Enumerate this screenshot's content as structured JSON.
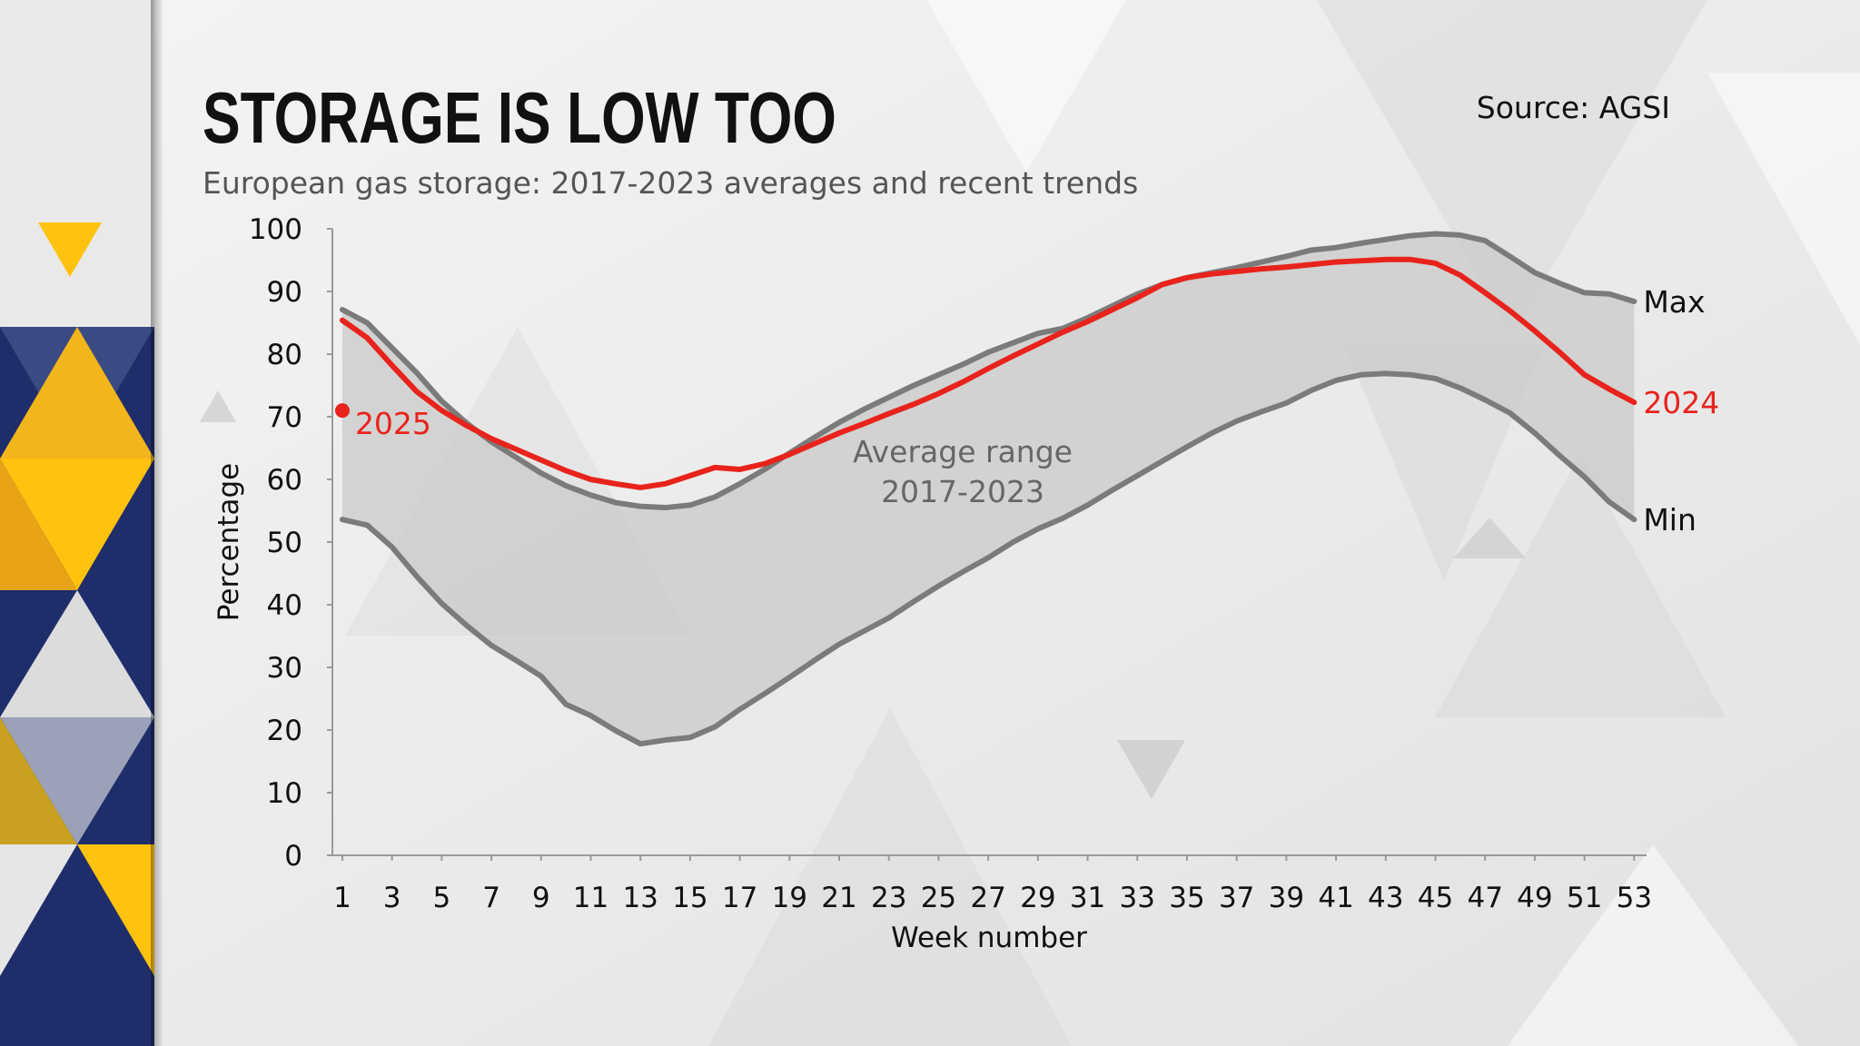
{
  "chart_data": {
    "type": "line",
    "title": "STORAGE IS LOW TOO",
    "subtitle": "European gas storage: 2017-2023 averages and recent trends",
    "source": "Source: AGSI",
    "x_label": "Week number",
    "y_label": "Percentage",
    "annotation": [
      "Average range",
      "2017-2023"
    ],
    "x": [
      1,
      2,
      3,
      4,
      5,
      6,
      7,
      8,
      9,
      10,
      11,
      12,
      13,
      14,
      15,
      16,
      17,
      18,
      19,
      20,
      21,
      22,
      23,
      24,
      25,
      26,
      27,
      28,
      29,
      30,
      31,
      32,
      33,
      34,
      35,
      36,
      37,
      38,
      39,
      40,
      41,
      42,
      43,
      44,
      45,
      46,
      47,
      48,
      49,
      50,
      51,
      52,
      53
    ],
    "xlim": [
      0.6,
      53.5
    ],
    "xticks": [
      1,
      3,
      5,
      7,
      9,
      11,
      13,
      15,
      17,
      19,
      21,
      23,
      25,
      27,
      29,
      31,
      33,
      35,
      37,
      39,
      41,
      43,
      45,
      47,
      49,
      51,
      53
    ],
    "ylim": [
      0,
      100
    ],
    "yticks": [
      0,
      10,
      20,
      30,
      40,
      50,
      60,
      70,
      80,
      90,
      100
    ],
    "range_fill": "#c9c9c9",
    "series": [
      {
        "name": "Max",
        "color": "#7b7b7b",
        "values": [
          87.1,
          85,
          81,
          77,
          72.5,
          69,
          66,
          63.5,
          61,
          59,
          57.5,
          56.3,
          55.7,
          55.5,
          55.9,
          57.2,
          59.3,
          61.6,
          64.2,
          66.7,
          69.1,
          71.2,
          73.1,
          75,
          76.7,
          78.4,
          80.3,
          81.8,
          83.3,
          84.1,
          85.8,
          87.7,
          89.6,
          91.1,
          92.2,
          93,
          93.8,
          94.7,
          95.6,
          96.6,
          97,
          97.7,
          98.3,
          98.9,
          99.2,
          99,
          98.1,
          95.6,
          93,
          91.3,
          89.8,
          89.6,
          88.4
        ]
      },
      {
        "name": "Min",
        "color": "#7b7b7b",
        "values": [
          53.6,
          52.7,
          49.2,
          44.5,
          40.2,
          36.7,
          33.5,
          31.1,
          28.6,
          24.1,
          22.3,
          19.9,
          17.8,
          18.4,
          18.8,
          20.5,
          23.3,
          25.8,
          28.4,
          31.1,
          33.7,
          35.8,
          37.9,
          40.5,
          43,
          45.3,
          47.5,
          50,
          52.1,
          53.8,
          55.9,
          58.3,
          60.6,
          62.9,
          65.2,
          67.4,
          69.3,
          70.8,
          72.2,
          74.2,
          75.8,
          76.7,
          76.9,
          76.7,
          76.1,
          74.6,
          72.7,
          70.6,
          67.4,
          63.8,
          60.4,
          56.4,
          53.6
        ]
      },
      {
        "name": "2024",
        "color": "#e8231c",
        "values": [
          85.4,
          82.6,
          78.2,
          74,
          71,
          68.6,
          66.5,
          64.8,
          63.1,
          61.4,
          60,
          59.3,
          58.7,
          59.3,
          60.6,
          61.9,
          61.6,
          62.5,
          64,
          65.7,
          67.4,
          68.9,
          70.5,
          72,
          73.7,
          75.6,
          77.7,
          79.7,
          81.6,
          83.5,
          85.2,
          87.1,
          89,
          91.1,
          92.2,
          92.8,
          93.2,
          93.6,
          93.9,
          94.3,
          94.7,
          94.9,
          95.1,
          95.1,
          94.5,
          92.6,
          89.8,
          86.9,
          83.7,
          80.3,
          76.7,
          74.4,
          72.3
        ]
      },
      {
        "name": "2025",
        "color": "#e8231c",
        "values": [
          71,
          null,
          null,
          null,
          null,
          null,
          null,
          null,
          null,
          null,
          null,
          null,
          null,
          null,
          null,
          null,
          null,
          null,
          null,
          null,
          null,
          null,
          null,
          null,
          null,
          null,
          null,
          null,
          null,
          null,
          null,
          null,
          null,
          null,
          null,
          null,
          null,
          null,
          null,
          null,
          null,
          null,
          null,
          null,
          null,
          null,
          null,
          null,
          null,
          null,
          null,
          null,
          null
        ]
      }
    ]
  }
}
